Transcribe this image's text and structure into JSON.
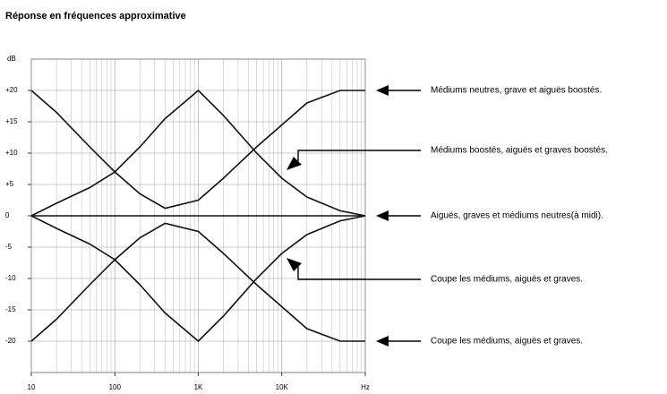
{
  "chart_data": {
    "type": "line",
    "title": "Réponse en fréquences approximative",
    "y_label": "dB",
    "log_x": true,
    "grid": true,
    "xlim": [
      10,
      100000
    ],
    "xticks": [
      10,
      100,
      {
        "value": 1000,
        "label": "1K"
      },
      {
        "value": 10000,
        "label": "10K"
      },
      {
        "value": 100000,
        "label": "Hz"
      }
    ],
    "ylim": [
      -25,
      25
    ],
    "yticks": [
      {
        "value": 20,
        "label": "+20"
      },
      {
        "value": 15,
        "label": "+15"
      },
      {
        "value": 10,
        "label": "+10"
      },
      {
        "value": 5,
        "label": "+5"
      },
      0,
      -5,
      -10,
      -15,
      -20
    ],
    "x": [
      10,
      20,
      50,
      100,
      200,
      400,
      1000,
      2000,
      5000,
      10000,
      20000,
      50000,
      100000
    ],
    "series": [
      {
        "color": "#111111",
        "values": [
          20,
          16.5,
          11,
          7,
          3.5,
          1.2,
          2.5,
          6,
          11,
          14.5,
          18,
          20,
          20
        ]
      },
      {
        "color": "#111111",
        "values": [
          0,
          2,
          4.5,
          7,
          11,
          15.5,
          20,
          16,
          10,
          6,
          3,
          0.8,
          0
        ]
      },
      {
        "color": "#111111",
        "values": [
          0,
          0,
          0,
          0,
          0,
          0,
          0,
          0,
          0,
          0,
          0,
          0,
          0
        ]
      },
      {
        "color": "#111111",
        "values": [
          0,
          -2,
          -4.5,
          -7,
          -11,
          -15.5,
          -20,
          -16,
          -10,
          -6,
          -3,
          -0.8,
          0
        ]
      },
      {
        "color": "#111111",
        "values": [
          -20,
          -16.5,
          -11,
          -7,
          -3.5,
          -1.2,
          -2.5,
          -6,
          -11,
          -14.5,
          -18,
          -20,
          -20
        ]
      }
    ],
    "annotations": [
      "Médiums neutres, grave et aiguës boostés.",
      "Médiums boostés, aiguës et graves boostés.",
      "Aiguës, graves et médiums neutres(à midi).",
      "Coupe les médiums, aiguës et graves.",
      "Coupe les médiums, aiguës et graves."
    ]
  }
}
